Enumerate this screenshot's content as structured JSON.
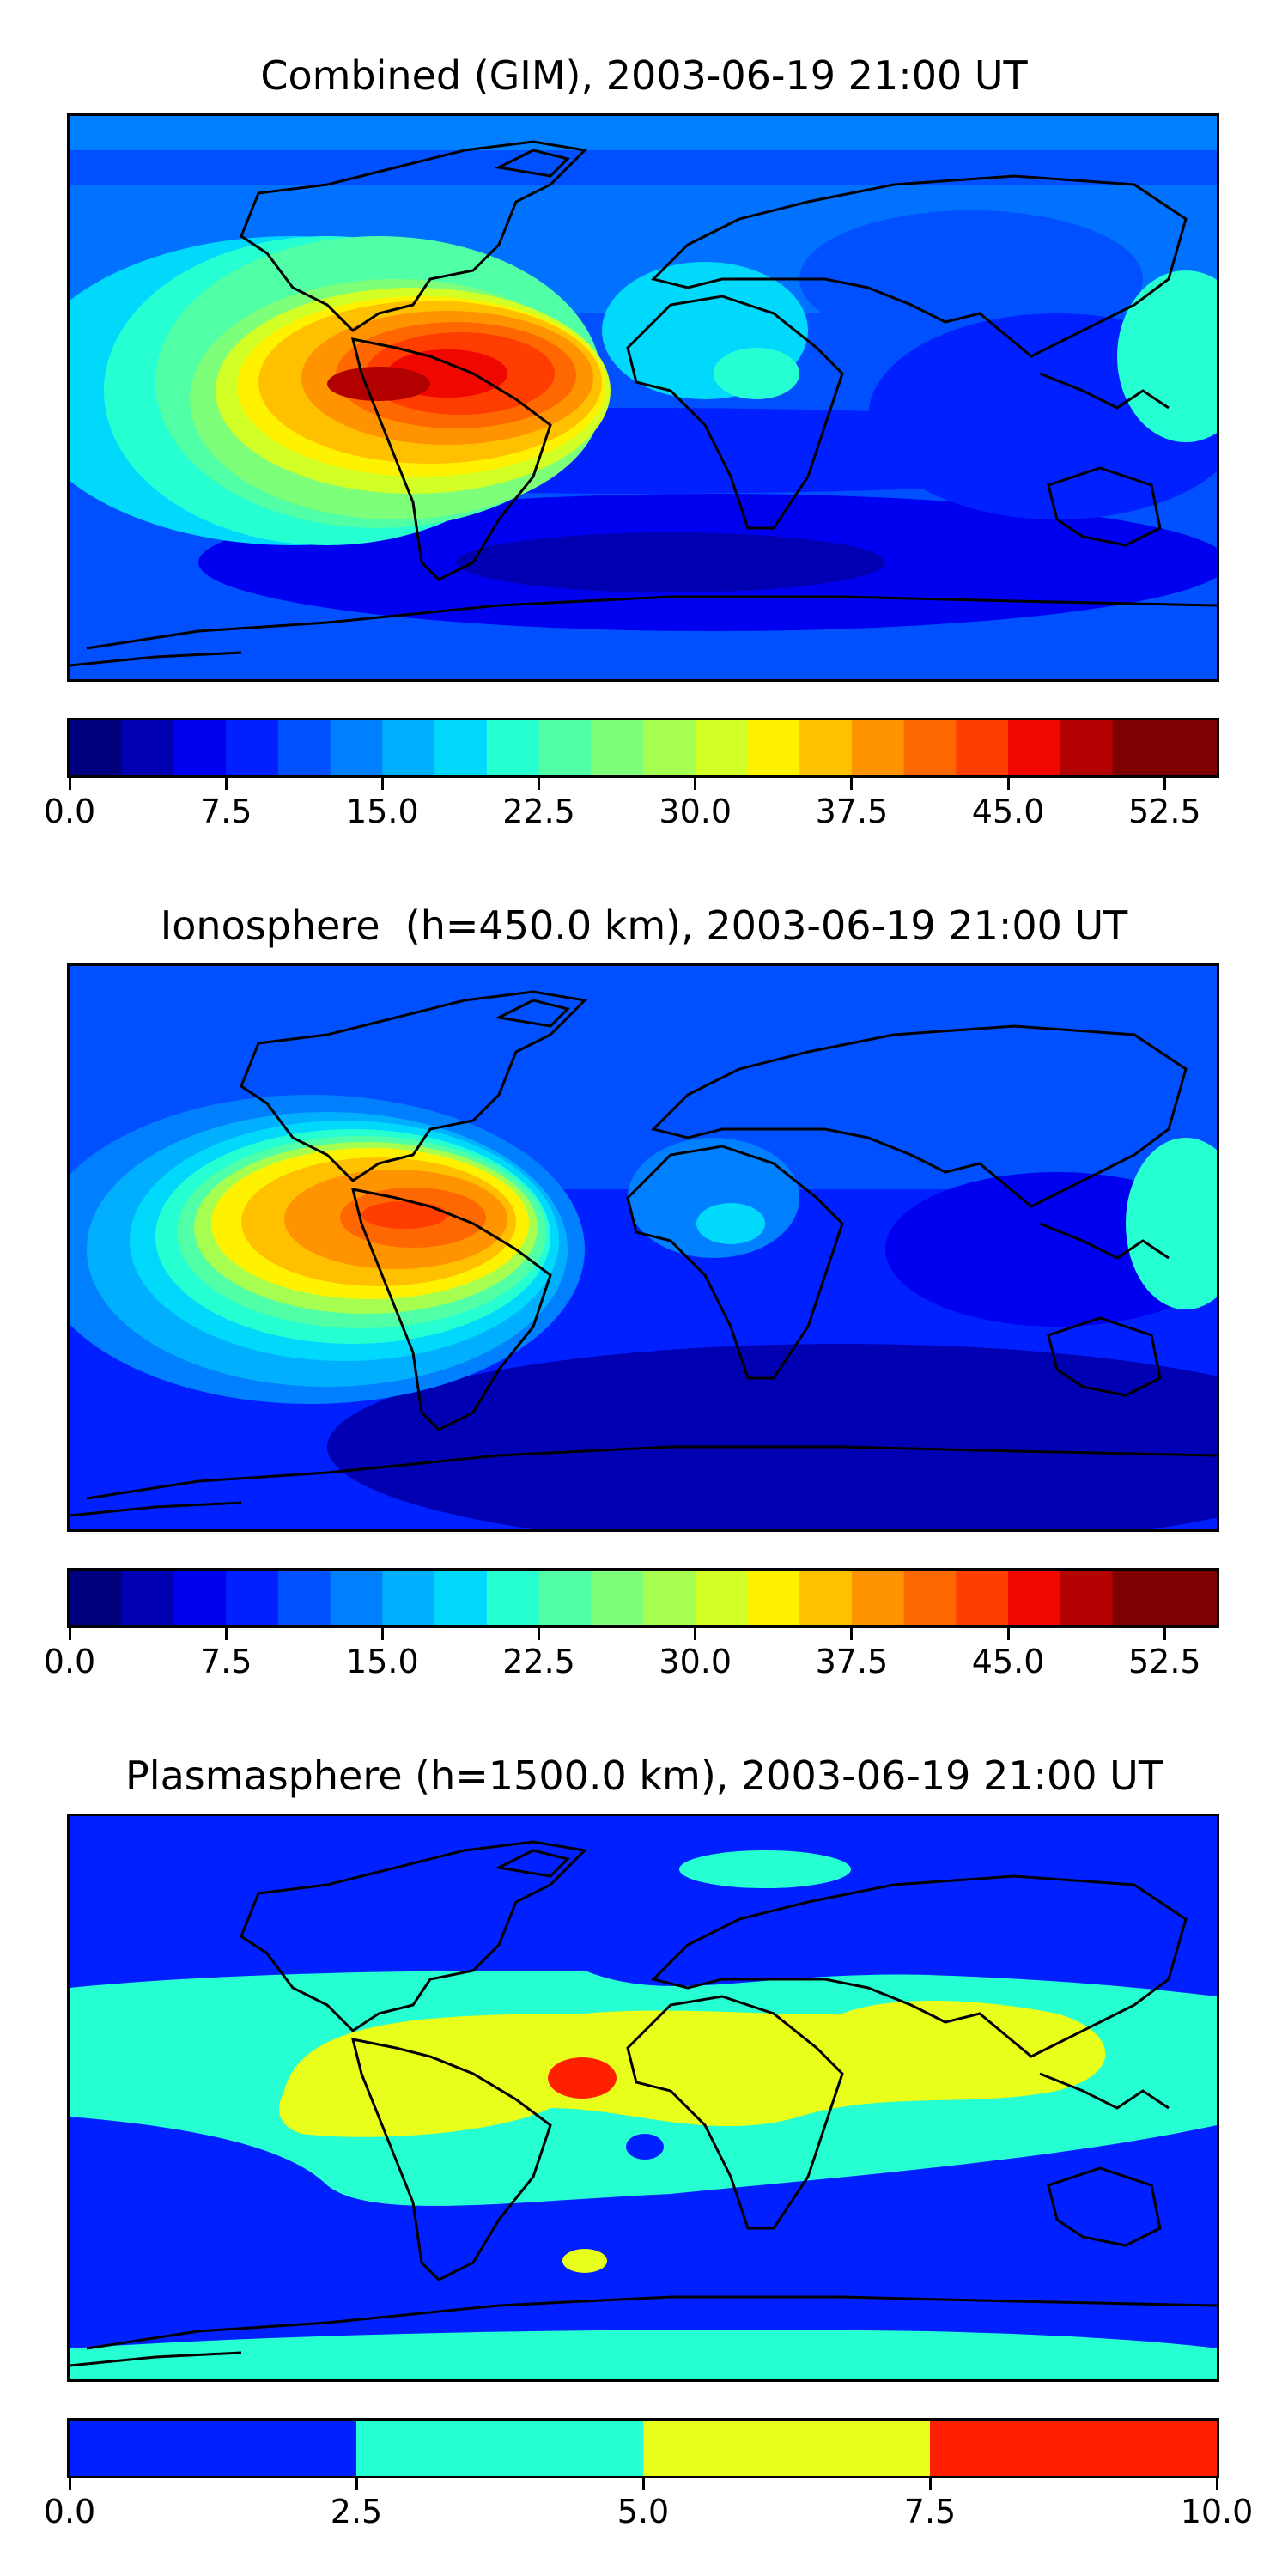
{
  "palette": [
    "#00007f",
    "#0000b2",
    "#0000f0",
    "#0020ff",
    "#0050ff",
    "#0080ff",
    "#00b0ff",
    "#00d8fc",
    "#26ffd1",
    "#50ffa6",
    "#7dff7a",
    "#a6ff50",
    "#d1ff26",
    "#fff200",
    "#ffc000",
    "#ff9400",
    "#ff6800",
    "#ff3d00",
    "#f00800",
    "#b20000",
    "#7f0000"
  ],
  "coastline_color": "#000000",
  "chart_data": [
    {
      "type": "heatmap",
      "title": "Combined (GIM), 2003-06-19 21:00 UT",
      "map_type": "global filled-contour map with coastlines",
      "colorbar": {
        "min": 0.0,
        "max": 55.0,
        "levels": 22,
        "tick_values": [
          0.0,
          7.5,
          15.0,
          22.5,
          30.0,
          37.5,
          45.0,
          52.5
        ],
        "tick_labels": [
          "0.0",
          "7.5",
          "15.0",
          "22.5",
          "30.0",
          "37.5",
          "45.0",
          "52.5"
        ],
        "colors": [
          "#00007f",
          "#0000b2",
          "#0000f0",
          "#0020ff",
          "#0050ff",
          "#0080ff",
          "#00b0ff",
          "#00d8fc",
          "#26ffd1",
          "#50ffa6",
          "#7dff7a",
          "#a6ff50",
          "#d1ff26",
          "#fff200",
          "#ffc000",
          "#ff9400",
          "#ff6800",
          "#ff3d00",
          "#f00800",
          "#b20000",
          "#7f0000",
          "#7f0000"
        ]
      },
      "features": [
        {
          "description": "maximum over northern South America / Central America",
          "value": 52.5
        },
        {
          "description": "low values over southern ocean and Indian Ocean",
          "value": 5.0
        }
      ]
    },
    {
      "type": "heatmap",
      "title": "Ionosphere  (h=450.0 km), 2003-06-19 21:00 UT",
      "map_type": "global filled-contour map with coastlines",
      "colorbar": {
        "min": 0.0,
        "max": 55.0,
        "levels": 22,
        "tick_values": [
          0.0,
          7.5,
          15.0,
          22.5,
          30.0,
          37.5,
          45.0,
          52.5
        ],
        "tick_labels": [
          "0.0",
          "7.5",
          "15.0",
          "22.5",
          "30.0",
          "37.5",
          "45.0",
          "52.5"
        ],
        "colors": [
          "#00007f",
          "#0000b2",
          "#0000f0",
          "#0020ff",
          "#0050ff",
          "#0080ff",
          "#00b0ff",
          "#00d8fc",
          "#26ffd1",
          "#50ffa6",
          "#7dff7a",
          "#a6ff50",
          "#d1ff26",
          "#fff200",
          "#ffc000",
          "#ff9400",
          "#ff6800",
          "#ff3d00",
          "#f00800",
          "#b20000",
          "#7f0000",
          "#7f0000"
        ]
      },
      "features": [
        {
          "description": "maximum over northern South America",
          "value": 47.5
        },
        {
          "description": "low values over southern Indian Ocean and Pacific",
          "value": 2.5
        }
      ]
    },
    {
      "type": "heatmap",
      "title": "Plasmasphere (h=1500.0 km), 2003-06-19 21:00 UT",
      "map_type": "global filled-contour map with coastlines",
      "colorbar": {
        "min": 0.0,
        "max": 10.0,
        "levels": 4,
        "tick_values": [
          0.0,
          2.5,
          5.0,
          7.5,
          10.0
        ],
        "tick_labels": [
          "0.0",
          "2.5",
          "5.0",
          "7.5",
          "10.0"
        ],
        "colors": [
          "#0020ff",
          "#26ffd1",
          "#e8ff1c",
          "#ff2000"
        ]
      },
      "features": [
        {
          "description": "7.5-10 patch over West Africa coast",
          "value": 8.0
        },
        {
          "description": "5-7.5 band from Central America to southeast Asia",
          "value": 6.0
        },
        {
          "description": "2.5-5 band across low latitudes",
          "value": 3.5
        },
        {
          "description": "0-2.5 at high latitudes",
          "value": 1.0
        }
      ]
    }
  ]
}
